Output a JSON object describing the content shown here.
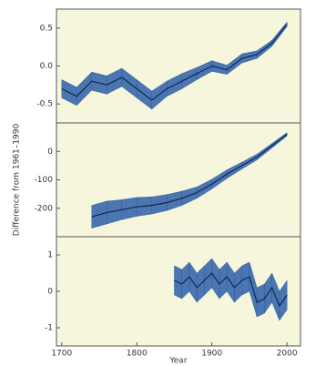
{
  "chart_data": [
    {
      "type": "band-line",
      "x": [
        1700,
        1720,
        1740,
        1760,
        1780,
        1800,
        1820,
        1840,
        1860,
        1880,
        1900,
        1920,
        1940,
        1960,
        1980,
        2000
      ],
      "series": [
        {
          "color": "#2e5fa8",
          "values": [
            -0.3,
            -0.4,
            -0.2,
            -0.25,
            -0.15,
            -0.3,
            -0.45,
            -0.3,
            -0.2,
            -0.1,
            0.0,
            -0.05,
            0.1,
            0.15,
            0.3,
            0.55
          ],
          "lower": [
            -0.42,
            -0.52,
            -0.32,
            -0.37,
            -0.27,
            -0.42,
            -0.57,
            -0.4,
            -0.3,
            -0.18,
            -0.07,
            -0.11,
            0.04,
            0.1,
            0.26,
            0.52
          ],
          "upper": [
            -0.18,
            -0.28,
            -0.08,
            -0.13,
            -0.03,
            -0.18,
            -0.33,
            -0.2,
            -0.1,
            -0.02,
            0.07,
            0.01,
            0.16,
            0.2,
            0.34,
            0.58
          ]
        }
      ],
      "xlim": [
        1693,
        2018
      ],
      "ylim": [
        -0.75,
        0.75
      ],
      "yticks": [
        -0.5,
        {
          "value": 0,
          "label": "0.0"
        },
        0.5
      ]
    },
    {
      "type": "band-line",
      "ylabel": "Difference from 1961–1990",
      "x": [
        1740,
        1760,
        1780,
        1800,
        1820,
        1840,
        1860,
        1880,
        1900,
        1920,
        1940,
        1960,
        1980,
        2000
      ],
      "series": [
        {
          "color": "#2e5fa8",
          "values": [
            -230,
            -215,
            -205,
            -195,
            -190,
            -180,
            -165,
            -145,
            -115,
            -80,
            -50,
            -20,
            20,
            60
          ],
          "lower": [
            -270,
            -255,
            -240,
            -228,
            -220,
            -208,
            -190,
            -165,
            -132,
            -95,
            -62,
            -30,
            12,
            54
          ],
          "upper": [
            -190,
            -175,
            -170,
            -162,
            -160,
            -152,
            -140,
            -125,
            -98,
            -65,
            -38,
            -10,
            28,
            66
          ]
        }
      ],
      "xlim": [
        1693,
        2018
      ],
      "ylim": [
        -300,
        100
      ],
      "yticks": [
        -200,
        -100,
        0
      ]
    },
    {
      "type": "band-line",
      "xlabel": "Year",
      "x": [
        1850,
        1860,
        1870,
        1880,
        1890,
        1900,
        1910,
        1920,
        1930,
        1940,
        1950,
        1960,
        1970,
        1980,
        1990,
        2000
      ],
      "series": [
        {
          "color": "#2e5fa8",
          "values": [
            0.3,
            0.2,
            0.4,
            0.1,
            0.3,
            0.5,
            0.2,
            0.4,
            0.1,
            0.3,
            0.4,
            -0.3,
            -0.2,
            0.1,
            -0.4,
            -0.1
          ],
          "lower": [
            -0.1,
            -0.2,
            0.0,
            -0.3,
            -0.1,
            0.1,
            -0.2,
            0.0,
            -0.3,
            -0.1,
            0.0,
            -0.7,
            -0.6,
            -0.3,
            -0.8,
            -0.5
          ],
          "upper": [
            0.7,
            0.6,
            0.8,
            0.5,
            0.7,
            0.9,
            0.6,
            0.8,
            0.5,
            0.7,
            0.8,
            0.1,
            0.2,
            0.5,
            0.0,
            0.3
          ]
        }
      ],
      "xlim": [
        1693,
        2018
      ],
      "ylim": [
        -1.5,
        1.5
      ],
      "yticks": [
        -1,
        0,
        1
      ],
      "xticks": [
        1700,
        1800,
        1900,
        2000
      ]
    }
  ]
}
